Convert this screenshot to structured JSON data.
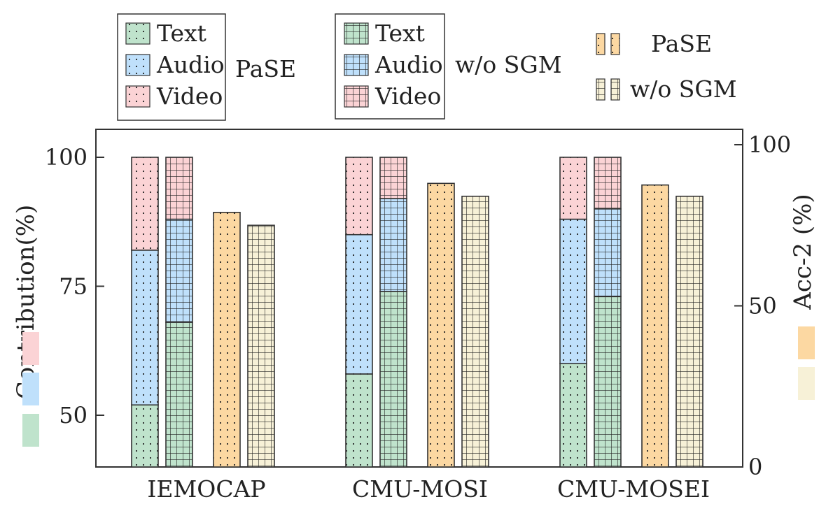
{
  "chart_data": {
    "type": "bar",
    "categories": [
      "IEMOCAP",
      "CMU-MOSI",
      "CMU-MOSEI"
    ],
    "contribution": {
      "ylabel": "Contribution(%)",
      "ylim": [
        40,
        105
      ],
      "yticks": [
        "50",
        "75",
        "100"
      ],
      "groups": [
        {
          "name": "PaSE",
          "text": 52,
          "audio": 82,
          "video": 100
        },
        {
          "name": "w/o SGM",
          "text": 68,
          "audio": 88,
          "video": 100
        }
      ],
      "values": {
        "PaSE": [
          {
            "text": 52,
            "audio": 82,
            "video": 100
          },
          {
            "text": 58,
            "audio": 85,
            "video": 100
          },
          {
            "text": 60,
            "audio": 88,
            "video": 100
          }
        ],
        "w/o SGM": [
          {
            "text": 68,
            "audio": 88,
            "video": 100
          },
          {
            "text": 74,
            "audio": 92,
            "video": 100
          },
          {
            "text": 73,
            "audio": 90,
            "video": 100
          }
        ]
      }
    },
    "accuracy": {
      "ylabel": "Acc-2 (%)",
      "ylim": [
        0,
        100
      ],
      "yticks": [
        "0",
        "50",
        "100"
      ],
      "series": [
        {
          "name": "PaSE",
          "values": [
            79,
            88,
            87.5
          ]
        },
        {
          "name": "w/o SGM",
          "values": [
            75,
            84,
            84
          ]
        }
      ]
    },
    "legend": {
      "pase_group": {
        "items": [
          "Text",
          "Audio",
          "Video"
        ],
        "label": "PaSE"
      },
      "sgm_group": {
        "items": [
          "Text",
          "Audio",
          "Video"
        ],
        "label": "w/o SGM"
      },
      "acc": {
        "items": [
          "PaSE",
          "w/o SGM"
        ]
      }
    },
    "colors": {
      "text": "#bfe3cc",
      "audio": "#bfe0fb",
      "video": "#fbd3d5",
      "acc_pase": "#fcd8a2",
      "acc_sgm": "#f7f1d7"
    }
  }
}
